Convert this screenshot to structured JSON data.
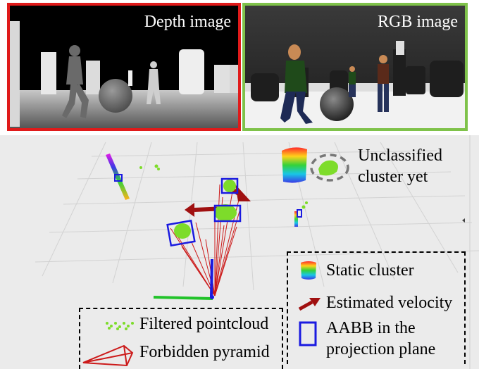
{
  "depth_panel": {
    "title": "Depth image",
    "border_color": "#e01a1a"
  },
  "rgb_panel": {
    "title": "RGB image",
    "border_color": "#7fc24a"
  },
  "annotation": {
    "line1": "Unclassified",
    "line2": "cluster yet"
  },
  "legend_right": {
    "static_cluster": "Static cluster",
    "estimated_velocity": "Estimated velocity",
    "aabb_line1": "AABB in the",
    "aabb_line2": "projection plane"
  },
  "legend_left": {
    "filtered_pointcloud": "Filtered pointcloud",
    "forbidden_pyramid": "Forbidden pyramid"
  },
  "colors": {
    "velocity_arrow": "#a01010",
    "aabb": "#1a1ae0",
    "pointcloud": "#7ddc2a",
    "pyramid": "#cc1a1a"
  },
  "icons": [
    "static-cluster-icon",
    "velocity-arrow-icon",
    "aabb-box-icon",
    "pointcloud-dots-icon",
    "pyramid-icon"
  ]
}
